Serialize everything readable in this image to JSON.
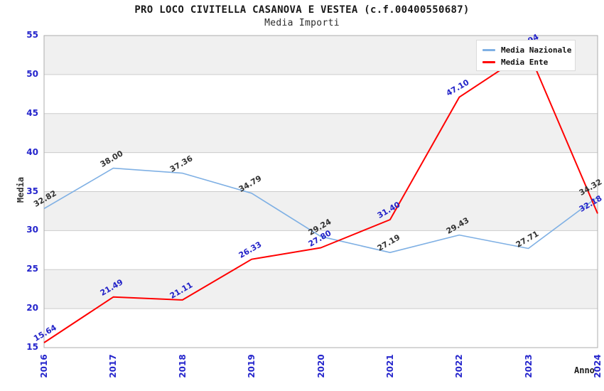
{
  "chart_data": {
    "type": "line",
    "title": "PRO LOCO CIVITELLA CASANOVA E VESTEA (c.f.00400550687)",
    "subtitle": "Media Importi",
    "xlabel": "Anno",
    "ylabel": "Media",
    "categories": [
      "2016",
      "2017",
      "2018",
      "2019",
      "2020",
      "2021",
      "2022",
      "2023",
      "2024"
    ],
    "series": [
      {
        "name": "Media Nazionale",
        "color": "#7FB0E4",
        "label_color": "#333333",
        "values": [
          32.82,
          38.0,
          37.36,
          34.79,
          29.24,
          27.19,
          29.43,
          27.71,
          34.32
        ]
      },
      {
        "name": "Media Ente",
        "color": "#FF0000",
        "label_color": "#2323C8",
        "values": [
          15.64,
          21.49,
          21.11,
          26.33,
          27.8,
          31.4,
          47.1,
          52.94,
          32.18
        ]
      }
    ],
    "ylim": [
      15,
      55
    ],
    "ytick_step": 5,
    "yticks": [
      15,
      20,
      25,
      30,
      35,
      40,
      45,
      50,
      55
    ],
    "grid": "horizontal-bands",
    "legend_position": "top-right",
    "colors": {
      "tick_label": "#2525CC",
      "band_fill": "#F0F0F0",
      "band_alt_fill": "#FFFFFF",
      "gridline": "#CCCCCC",
      "plot_border": "#ADADAD",
      "axis_title": "#333333",
      "legend_bg": "#FFFFFF",
      "legend_border": "#DBDBDB"
    }
  }
}
